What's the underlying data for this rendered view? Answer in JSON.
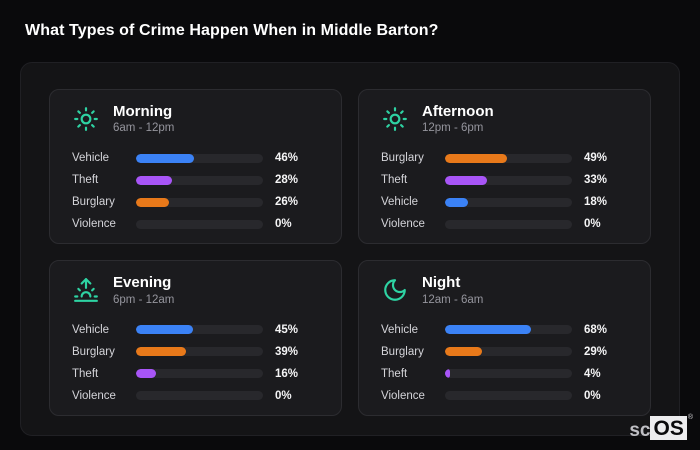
{
  "page_title": "What Types of Crime Happen When in Middle Barton?",
  "brand": {
    "prefix": "sc",
    "suffix": "OS",
    "reg": "®"
  },
  "colors": {
    "background": "#0a0a0c",
    "panel": "#141416",
    "card": "#1b1b1e",
    "track": "#28282c",
    "accent_teal": "#2ed3a3",
    "bar_blue": "#3b82f6",
    "bar_purple": "#a855f7",
    "bar_orange": "#e8791a"
  },
  "chart_data": [
    {
      "type": "bar",
      "title": "Morning",
      "subtitle": "6am - 12pm",
      "icon": "sun-icon",
      "xlim": [
        0,
        100
      ],
      "categories": [
        "Vehicle",
        "Theft",
        "Burglary",
        "Violence"
      ],
      "values": [
        46,
        28,
        26,
        0
      ],
      "rows": [
        {
          "label": "Vehicle",
          "value": 46,
          "percent_label": "46%",
          "color": "#3b82f6"
        },
        {
          "label": "Theft",
          "value": 28,
          "percent_label": "28%",
          "color": "#a855f7"
        },
        {
          "label": "Burglary",
          "value": 26,
          "percent_label": "26%",
          "color": "#e8791a"
        },
        {
          "label": "Violence",
          "value": 0,
          "percent_label": "0%",
          "color": ""
        }
      ]
    },
    {
      "type": "bar",
      "title": "Afternoon",
      "subtitle": "12pm - 6pm",
      "icon": "sun-icon",
      "xlim": [
        0,
        100
      ],
      "categories": [
        "Burglary",
        "Theft",
        "Vehicle",
        "Violence"
      ],
      "values": [
        49,
        33,
        18,
        0
      ],
      "rows": [
        {
          "label": "Burglary",
          "value": 49,
          "percent_label": "49%",
          "color": "#e8791a"
        },
        {
          "label": "Theft",
          "value": 33,
          "percent_label": "33%",
          "color": "#a855f7"
        },
        {
          "label": "Vehicle",
          "value": 18,
          "percent_label": "18%",
          "color": "#3b82f6"
        },
        {
          "label": "Violence",
          "value": 0,
          "percent_label": "0%",
          "color": ""
        }
      ]
    },
    {
      "type": "bar",
      "title": "Evening",
      "subtitle": "6pm - 12am",
      "icon": "sunrise-icon",
      "xlim": [
        0,
        100
      ],
      "categories": [
        "Vehicle",
        "Burglary",
        "Theft",
        "Violence"
      ],
      "values": [
        45,
        39,
        16,
        0
      ],
      "rows": [
        {
          "label": "Vehicle",
          "value": 45,
          "percent_label": "45%",
          "color": "#3b82f6"
        },
        {
          "label": "Burglary",
          "value": 39,
          "percent_label": "39%",
          "color": "#e8791a"
        },
        {
          "label": "Theft",
          "value": 16,
          "percent_label": "16%",
          "color": "#a855f7"
        },
        {
          "label": "Violence",
          "value": 0,
          "percent_label": "0%",
          "color": ""
        }
      ]
    },
    {
      "type": "bar",
      "title": "Night",
      "subtitle": "12am - 6am",
      "icon": "moon-icon",
      "xlim": [
        0,
        100
      ],
      "categories": [
        "Vehicle",
        "Burglary",
        "Theft",
        "Violence"
      ],
      "values": [
        68,
        29,
        4,
        0
      ],
      "rows": [
        {
          "label": "Vehicle",
          "value": 68,
          "percent_label": "68%",
          "color": "#3b82f6"
        },
        {
          "label": "Burglary",
          "value": 29,
          "percent_label": "29%",
          "color": "#e8791a"
        },
        {
          "label": "Theft",
          "value": 4,
          "percent_label": "4%",
          "color": "#a855f7"
        },
        {
          "label": "Violence",
          "value": 0,
          "percent_label": "0%",
          "color": ""
        }
      ]
    }
  ]
}
